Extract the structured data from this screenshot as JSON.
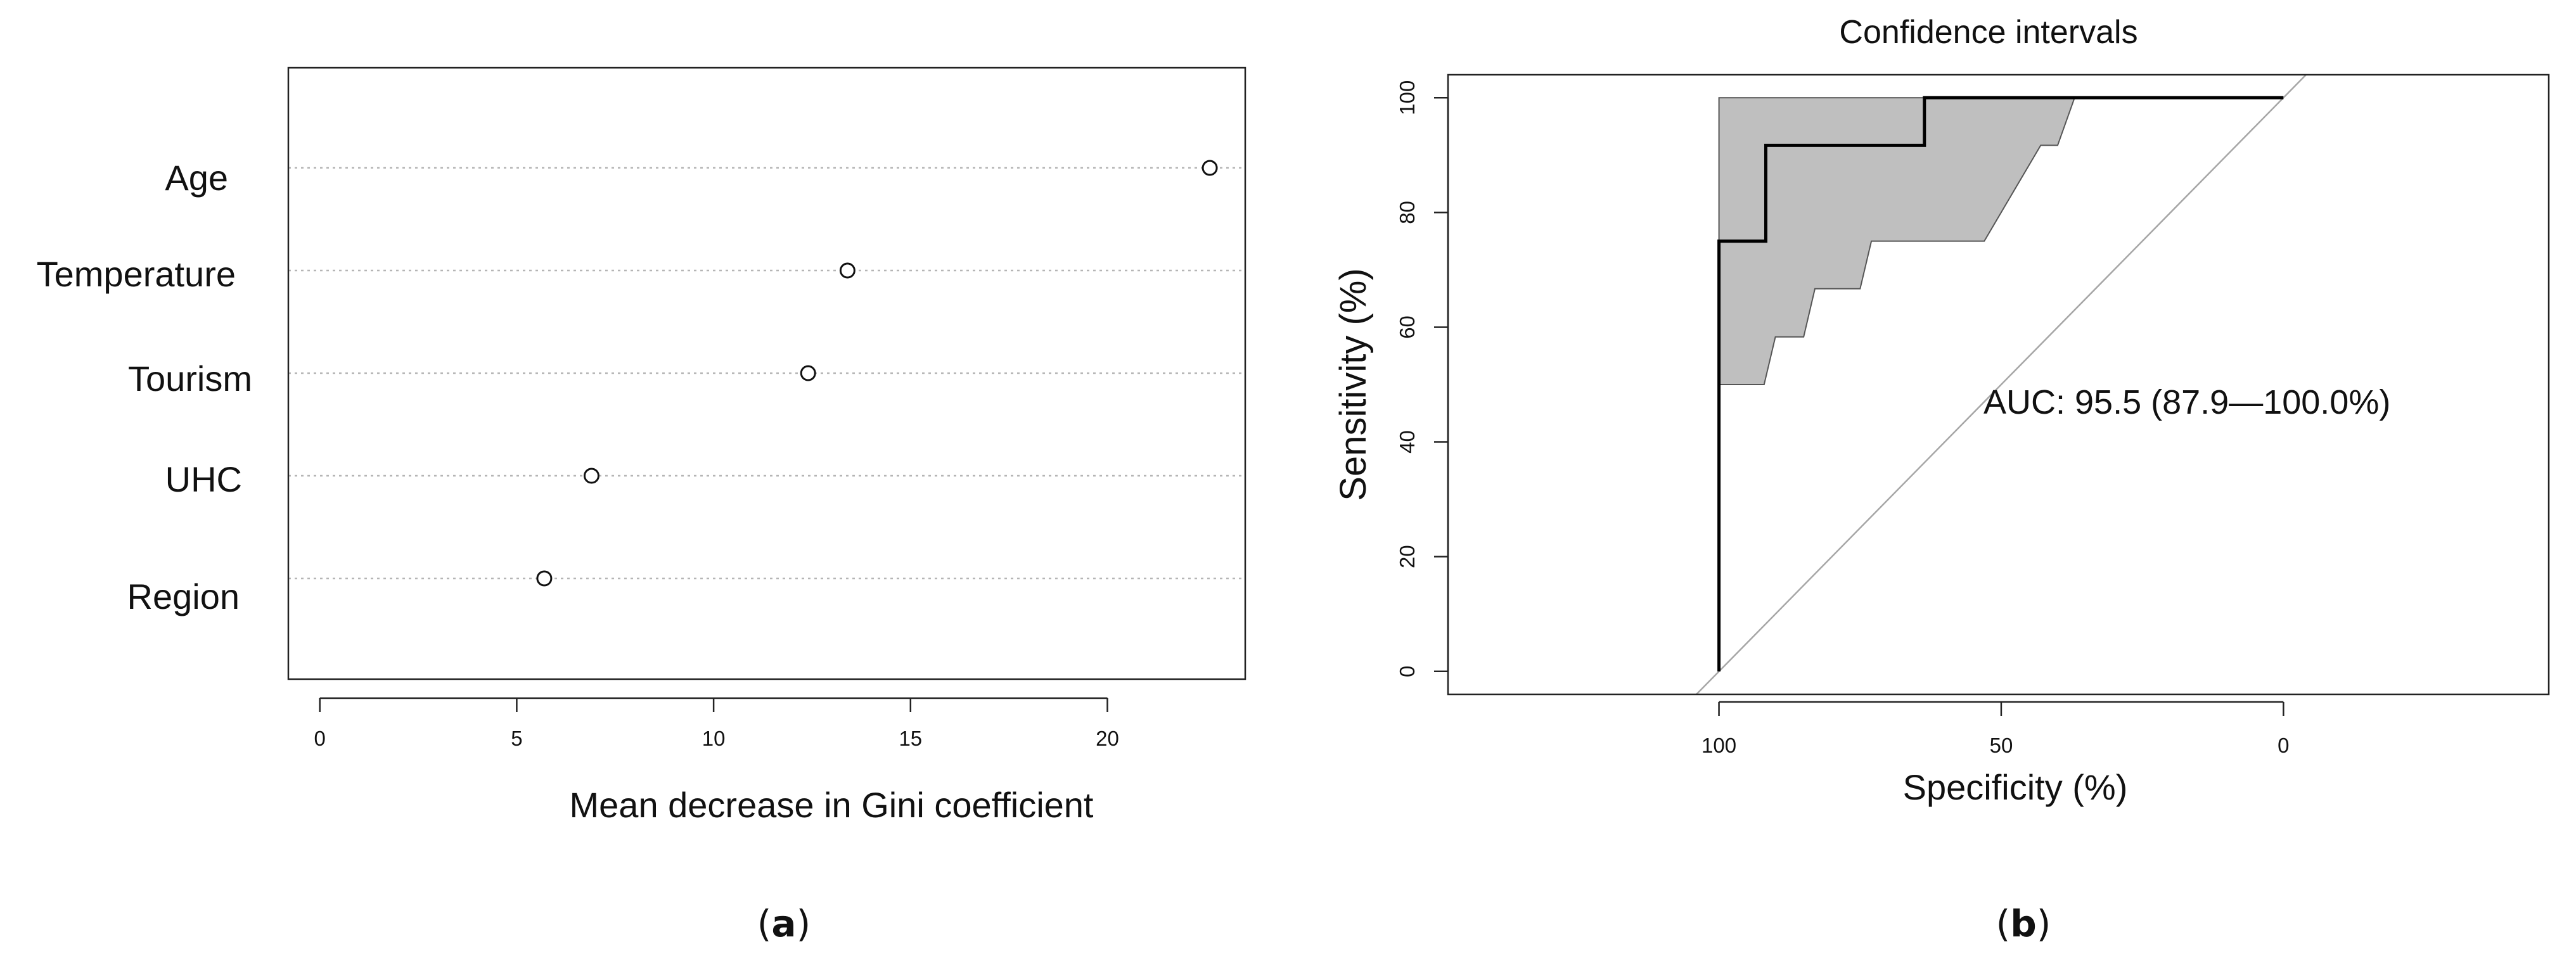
{
  "panels": {
    "a": {
      "open": "(",
      "letter": "a",
      "close": ")"
    },
    "b": {
      "open": "(",
      "letter": "b",
      "close": ")"
    }
  },
  "chart_data": [
    {
      "type": "scatter",
      "variant": "dot-chart",
      "title": "",
      "xlabel": "Mean decrease in Gini coefficient",
      "ylabel": "",
      "xlim": [
        -0.8,
        23.5
      ],
      "xticks": [
        0,
        5,
        10,
        15,
        20
      ],
      "grid": "horizontal dotted lines per category",
      "categories": [
        "Age",
        "Temperature",
        "Tourism",
        "UHC",
        "Region"
      ],
      "values": [
        22.6,
        13.4,
        12.4,
        6.9,
        5.7
      ]
    },
    {
      "type": "line",
      "variant": "roc-curve-with-confidence-band",
      "title": "Confidence intervals",
      "xlabel": "Specificity (%)",
      "ylabel": "Sensitivity (%)",
      "xlim": [
        148,
        -47
      ],
      "ylim": [
        -4,
        104
      ],
      "xticks": [
        100,
        50,
        0
      ],
      "yticks": [
        0,
        20,
        40,
        60,
        80,
        100
      ],
      "annotation": "AUC: 95.5 (87.9—100.0%)",
      "roc": {
        "specificity": [
          100,
          100,
          91.7,
          91.7,
          63.6,
          63.6,
          0
        ],
        "sensitivity": [
          0,
          75,
          75,
          91.7,
          91.7,
          100,
          100
        ]
      },
      "ci_band": {
        "upper_specificity": [
          100,
          100,
          35
        ],
        "upper_sensitivity": [
          50,
          100,
          100
        ],
        "lower_specificity": [
          35,
          37,
          40,
          43,
          53,
          55,
          60,
          70,
          73,
          75,
          80,
          83,
          85,
          90,
          92,
          97,
          100
        ],
        "lower_sensitivity": [
          100,
          100,
          91.7,
          91.7,
          75,
          75,
          75,
          75,
          75,
          66.7,
          66.7,
          66.7,
          58.3,
          58.3,
          50,
          50,
          50
        ]
      },
      "reference_line": {
        "specificity": [
          100,
          0
        ],
        "sensitivity": [
          0,
          100
        ]
      },
      "colors": {
        "band": "#bfbfbf",
        "roc": "#000000",
        "reference": "#a6a6a6"
      }
    }
  ]
}
